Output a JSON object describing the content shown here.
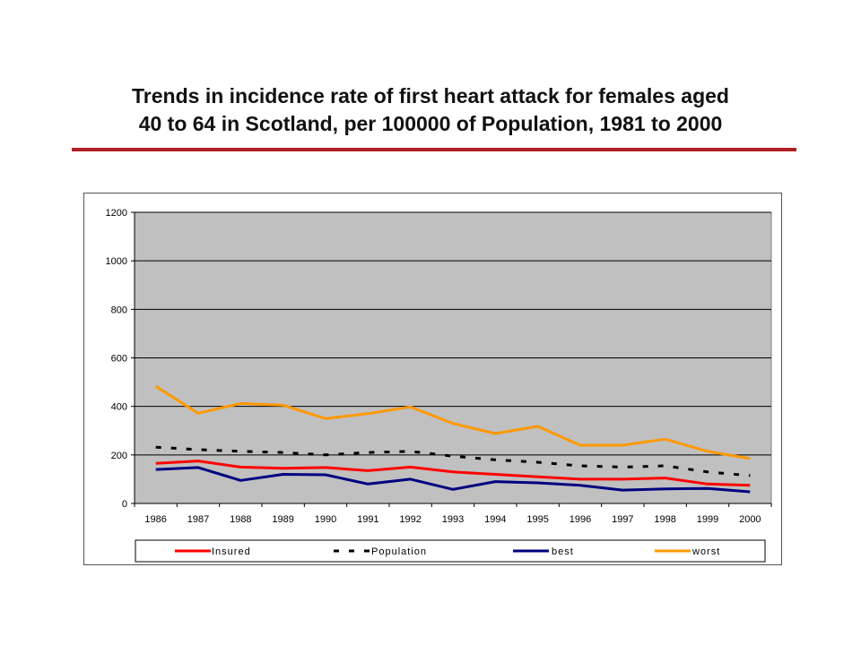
{
  "title": {
    "line1": "Trends in incidence rate of first heart attack for females aged",
    "line2": "40 to 64 in Scotland,  per 100000 of Population, 1981 to 2000"
  },
  "colors": {
    "title_rule": "#b11f24",
    "plot_background": "#c0c0c0"
  },
  "chart_data": {
    "type": "line",
    "title": "",
    "xlabel": "",
    "ylabel": "",
    "categories": [
      "1986",
      "1987",
      "1988",
      "1989",
      "1990",
      "1991",
      "1992",
      "1993",
      "1994",
      "1995",
      "1996",
      "1997",
      "1998",
      "1999",
      "2000"
    ],
    "ylim": [
      0,
      1200
    ],
    "yticks": [
      0,
      200,
      400,
      600,
      800,
      1000,
      1200
    ],
    "grid": "horizontal",
    "legend_position": "bottom",
    "series": [
      {
        "name": "Insured",
        "color": "#ff0000",
        "style": "solid",
        "values": [
          165,
          175,
          150,
          145,
          148,
          135,
          150,
          130,
          120,
          110,
          100,
          100,
          105,
          80,
          75
        ]
      },
      {
        "name": "Population",
        "color": "#000000",
        "style": "dashed",
        "values": [
          232,
          222,
          215,
          210,
          200,
          210,
          215,
          195,
          180,
          170,
          155,
          150,
          155,
          130,
          115
        ]
      },
      {
        "name": "best",
        "color": "#000080",
        "style": "solid",
        "values": [
          140,
          148,
          95,
          120,
          118,
          80,
          100,
          58,
          90,
          85,
          75,
          55,
          60,
          62,
          48
        ]
      },
      {
        "name": "worst",
        "color": "#ff9900",
        "style": "solid",
        "values": [
          483,
          372,
          412,
          405,
          350,
          370,
          398,
          330,
          288,
          318,
          240,
          240,
          265,
          215,
          185
        ]
      }
    ]
  }
}
